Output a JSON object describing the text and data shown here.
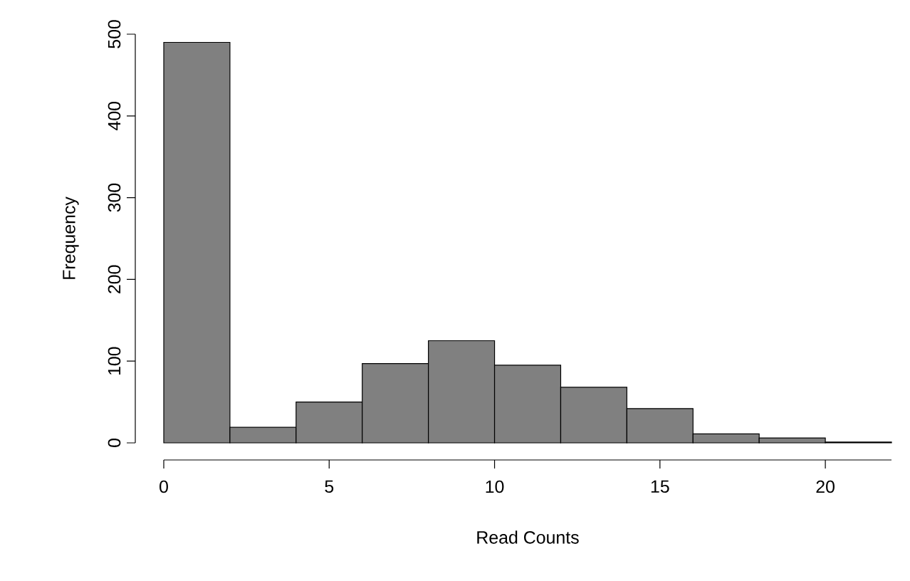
{
  "chart_data": {
    "type": "histogram",
    "xlabel": "Read Counts",
    "ylabel": "Frequency",
    "bins": [
      0,
      2,
      4,
      6,
      8,
      10,
      12,
      14,
      16,
      18,
      20,
      22
    ],
    "values": [
      490,
      19,
      50,
      97,
      125,
      95,
      68,
      42,
      11,
      6,
      1
    ],
    "color": "#808080",
    "xlim": [
      0,
      22
    ],
    "ylim": [
      0,
      500
    ],
    "xticks": [
      0,
      5,
      10,
      15,
      20
    ],
    "yticks": [
      0,
      100,
      200,
      300,
      400,
      500
    ]
  }
}
